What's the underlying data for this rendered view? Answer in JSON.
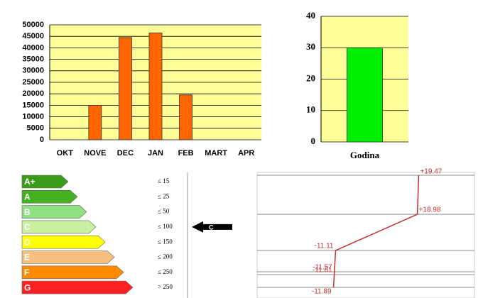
{
  "chart_data": [
    {
      "type": "bar",
      "categories": [
        "OKT",
        "NOVE",
        "DEC",
        "JAN",
        "FEB",
        "MART",
        "APR"
      ],
      "values": [
        0,
        15000,
        44500,
        46500,
        19500,
        0,
        0
      ],
      "color": "#ff6600",
      "ylim": [
        0,
        50000
      ],
      "yticks": [
        0,
        5000,
        10000,
        15000,
        20000,
        25000,
        30000,
        35000,
        40000,
        45000,
        50000
      ],
      "grid": true
    },
    {
      "type": "bar",
      "categories": [
        "Godina"
      ],
      "values": [
        30
      ],
      "color": "#00ee00",
      "ylim": [
        0,
        40
      ],
      "yticks": [
        0,
        10,
        20,
        30,
        40
      ],
      "grid": true
    },
    {
      "type": "line",
      "values": [
        19.47,
        18.98,
        -11.11,
        -11.57,
        -11.61,
        -11.89
      ],
      "value_labels": [
        "+19.47",
        "+18.98",
        "-11.11",
        "-11.57",
        "-11.61",
        "-11.89"
      ],
      "color": "#c03030",
      "xlim": [
        -40,
        40
      ],
      "grid": true
    }
  ],
  "energy_label": {
    "classes": [
      {
        "label": "A+",
        "color": "#3a9a1a"
      },
      {
        "label": "A",
        "color": "#45b020"
      },
      {
        "label": "B",
        "color": "#8ee080"
      },
      {
        "label": "C",
        "color": "#c8f0a0"
      },
      {
        "label": "D",
        "color": "#ffff00"
      },
      {
        "label": "E",
        "color": "#f8c080"
      },
      {
        "label": "F",
        "color": "#ff8c00"
      },
      {
        "label": "G",
        "color": "#ff2020"
      }
    ],
    "thresholds": [
      "≤ 15",
      "≤ 25",
      "≤ 50",
      "≤ 100",
      "≤ 150",
      "≤ 200",
      "≤ 250",
      "> 250"
    ],
    "rating": "C"
  }
}
